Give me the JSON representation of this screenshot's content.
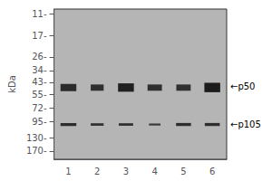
{
  "chart_data": {
    "type": "gel",
    "categories": [
      "1",
      "2",
      "3",
      "4",
      "5",
      "6"
    ],
    "ylabel": "kDa",
    "log": "y",
    "ylim": [
      200,
      10
    ],
    "yticks": [
      {
        "value": 170,
        "label": "170-"
      },
      {
        "value": 130,
        "label": "130-"
      },
      {
        "value": 95,
        "label": "95-"
      },
      {
        "value": 72,
        "label": "72-"
      },
      {
        "value": 55,
        "label": "55-"
      },
      {
        "value": 43,
        "label": "43-"
      },
      {
        "value": 34,
        "label": "34-"
      },
      {
        "value": 26,
        "label": "26-"
      },
      {
        "value": 17,
        "label": "17-"
      },
      {
        "value": 11,
        "label": "11-"
      }
    ],
    "grid": false,
    "bands": [
      {
        "lane": "1",
        "y": 100,
        "height": 6,
        "width": 0.55,
        "darkness": 0.55
      },
      {
        "lane": "2",
        "y": 100,
        "height": 5,
        "width": 0.45,
        "darkness": 0.45
      },
      {
        "lane": "3",
        "y": 100,
        "height": 5,
        "width": 0.5,
        "darkness": 0.5
      },
      {
        "lane": "4",
        "y": 100,
        "height": 4,
        "width": 0.4,
        "darkness": 0.3
      },
      {
        "lane": "5",
        "y": 100,
        "height": 6,
        "width": 0.52,
        "darkness": 0.55
      },
      {
        "lane": "6",
        "y": 100,
        "height": 6,
        "width": 0.52,
        "darkness": 0.55
      },
      {
        "lane": "1",
        "y": 48,
        "height": 7,
        "width": 0.55,
        "darkness": 0.6
      },
      {
        "lane": "2",
        "y": 48,
        "height": 6,
        "width": 0.45,
        "darkness": 0.5
      },
      {
        "lane": "3",
        "y": 48,
        "height": 8,
        "width": 0.55,
        "darkness": 0.8
      },
      {
        "lane": "4",
        "y": 48,
        "height": 6,
        "width": 0.5,
        "darkness": 0.5
      },
      {
        "lane": "5",
        "y": 48,
        "height": 6,
        "width": 0.5,
        "darkness": 0.5
      },
      {
        "lane": "6",
        "y": 48,
        "height": 9,
        "width": 0.55,
        "darkness": 0.9
      }
    ],
    "annotations": [
      {
        "text": "←p105",
        "y": 100
      },
      {
        "text": "←p50",
        "y": 47
      }
    ]
  }
}
